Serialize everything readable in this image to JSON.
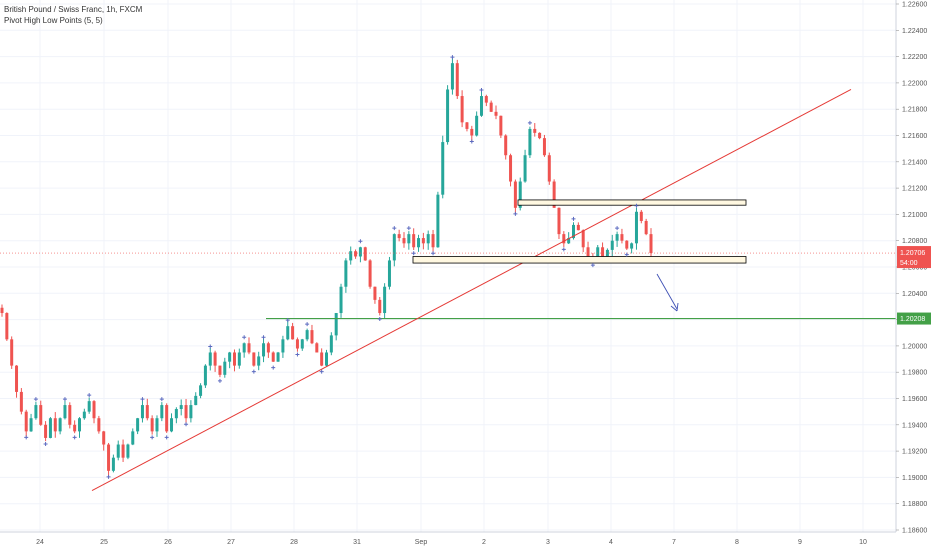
{
  "header": {
    "symbol_line": "British Pound / Swiss Franc, 1h, FXCM",
    "indicator_line": "Pivot High Low Points (5, 5)"
  },
  "colors": {
    "bull": "#26a69a",
    "bear": "#ef5350",
    "trendline": "#e53935",
    "support": "#43a047",
    "box_fill": "#fff8e1",
    "pivot": "#5c6bc0",
    "arrow": "#3f51b5",
    "current_price": "#ef5350",
    "support_tag": "#43a047",
    "grid": "#f0f3fa"
  },
  "chart_data": {
    "type": "candlestick",
    "x_tick_labels": [
      "24",
      "25",
      "26",
      "27",
      "28",
      "31",
      "Sep",
      "2",
      "3",
      "4",
      "7",
      "8",
      "9",
      "10"
    ],
    "y_tick_labels": [
      "1.22600",
      "1.22400",
      "1.22200",
      "1.22000",
      "1.21800",
      "1.21600",
      "1.21400",
      "1.21200",
      "1.21000",
      "1.20800",
      "1.20600",
      "1.20400",
      "1.20200",
      "1.20000",
      "1.19800",
      "1.19600",
      "1.19400",
      "1.19200",
      "1.19000",
      "1.18800",
      "1.18600"
    ],
    "ylim": [
      1.186,
      1.226
    ],
    "current_price": "1.20706",
    "countdown": "54:00",
    "support_level": "1.20208",
    "series": [
      {
        "name": "GBPCHF",
        "close_path": [
          1.2025,
          1.2005,
          1.1985,
          1.1965,
          1.195,
          1.1935,
          1.1945,
          1.1955,
          1.194,
          1.193,
          1.1945,
          1.1935,
          1.1945,
          1.1955,
          1.194,
          1.1935,
          1.1945,
          1.195,
          1.1958,
          1.1945,
          1.1935,
          1.1925,
          1.1905,
          1.1915,
          1.1925,
          1.1915,
          1.1925,
          1.1935,
          1.1945,
          1.1955,
          1.1945,
          1.1935,
          1.1945,
          1.1955,
          1.1935,
          1.1945,
          1.1952,
          1.1955,
          1.1945,
          1.1955,
          1.1962,
          1.197,
          1.1985,
          1.1995,
          1.1985,
          1.1978,
          1.1988,
          1.1995,
          1.1985,
          1.1995,
          1.2002,
          1.1995,
          1.1985,
          1.1992,
          1.2002,
          1.1995,
          1.1988,
          1.1995,
          1.2005,
          1.2015,
          1.2005,
          1.1998,
          1.2005,
          1.2012,
          1.2002,
          1.1995,
          1.1985,
          1.1995,
          1.2008,
          1.2025,
          1.2045,
          1.2065,
          1.2072,
          1.2068,
          1.2075,
          1.2065,
          1.2045,
          1.2035,
          1.2025,
          1.2045,
          1.2065,
          1.2085,
          1.2082,
          1.2078,
          1.2085,
          1.2075,
          1.2082,
          1.2078,
          1.2085,
          1.2075,
          1.2115,
          1.2155,
          1.2195,
          1.2215,
          1.219,
          1.217,
          1.2165,
          1.216,
          1.2175,
          1.219,
          1.2185,
          1.2178,
          1.2175,
          1.216,
          1.2145,
          1.2125,
          1.2105,
          1.2125,
          1.2145,
          1.2165,
          1.2162,
          1.2158,
          1.2145,
          1.2125,
          1.2105,
          1.2085,
          1.2078,
          1.2082,
          1.2092,
          1.2088,
          1.2075,
          1.2068,
          1.2066,
          1.2075,
          1.2068,
          1.2073,
          1.208,
          1.2085,
          1.208,
          1.2074,
          1.2078,
          1.2102,
          1.2095,
          1.2085,
          1.20706
        ]
      }
    ],
    "annotations": {
      "trendline": {
        "from": [
          "24",
          1.189
        ],
        "to": [
          "10",
          1.2195
        ]
      },
      "resistance_zone": {
        "from": [
          "2",
          1.2111
        ],
        "to": [
          "8",
          1.2107
        ]
      },
      "support_zone": {
        "from": [
          "Sep",
          1.2068
        ],
        "to": [
          "8",
          1.2063
        ]
      },
      "green_support_line": 1.20208,
      "arrow": "down"
    }
  }
}
